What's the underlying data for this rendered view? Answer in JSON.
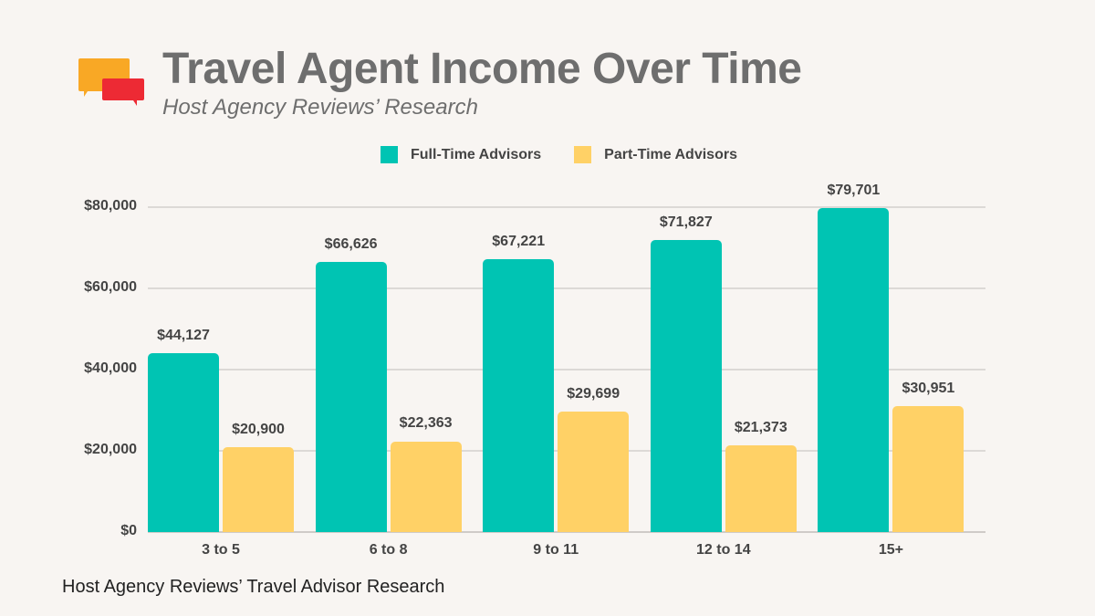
{
  "header": {
    "title": "Travel Agent Income Over Time",
    "subtitle": "Host Agency Reviews’ Research",
    "logo_icon": "chat-bubbles-icon"
  },
  "legend": [
    {
      "label": "Full-Time Advisors",
      "color": "#00c4b3"
    },
    {
      "label": "Part-Time Advisors",
      "color": "#ffd166"
    }
  ],
  "footer": "Host Agency Reviews’ Travel Advisor Research",
  "chart_data": {
    "type": "bar",
    "title": "Travel Agent Income Over Time",
    "subtitle": "Host Agency Reviews’ Research",
    "xlabel": "",
    "ylabel": "",
    "categories": [
      "3 to 5",
      "6 to 8",
      "9 to 11",
      "12 to 14",
      "15+"
    ],
    "series": [
      {
        "name": "Full-Time Advisors",
        "color": "#00c4b3",
        "values": [
          44127,
          66626,
          67221,
          71827,
          79701
        ],
        "labels": [
          "$44,127",
          "$66,626",
          "$67,221",
          "$71,827",
          "$79,701"
        ]
      },
      {
        "name": "Part-Time Advisors",
        "color": "#ffd166",
        "values": [
          20900,
          22363,
          29699,
          21373,
          30951
        ],
        "labels": [
          "$20,900",
          "$22,363",
          "$29,699",
          "$21,373",
          "$30,951"
        ]
      }
    ],
    "yticks": [
      "$0",
      "$20,000",
      "$40,000",
      "$60,000",
      "$80,000"
    ],
    "ytick_values": [
      0,
      20000,
      40000,
      60000,
      80000
    ],
    "ylim": [
      0,
      80000
    ],
    "grid": true,
    "legend_position": "top"
  }
}
